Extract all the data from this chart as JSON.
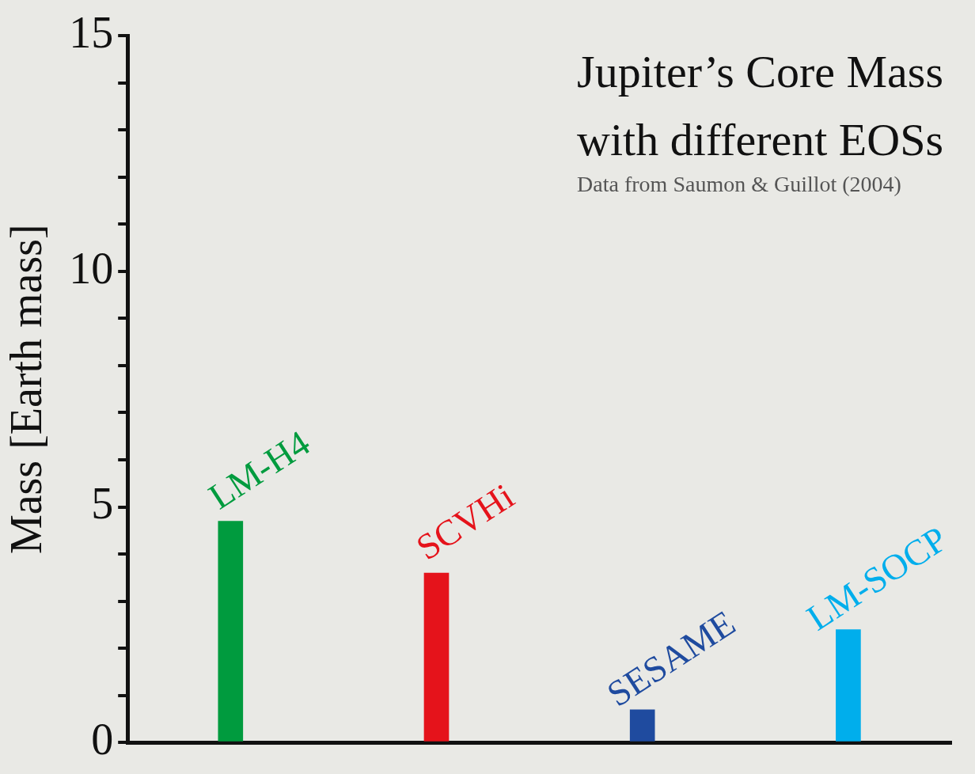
{
  "chart_data": {
    "type": "bar",
    "title": "Jupiter’s Core Mass with different EOSs",
    "subtitle": "Data from Saumon & Guillot (2004)",
    "ylabel": "Mass [Earth mass]",
    "categories": [
      "LM-H4",
      "SCVHi",
      "SESAME",
      "LM-SOCP"
    ],
    "values": [
      4.7,
      3.6,
      0.7,
      2.4
    ],
    "colors": [
      "#009b3e",
      "#e5131b",
      "#1f4b9f",
      "#00aeec"
    ],
    "ylim": [
      0,
      15
    ],
    "yticks": [
      0,
      {
        "value": 1,
        "label": null
      },
      {
        "value": 2,
        "label": null
      },
      {
        "value": 3,
        "label": null
      },
      {
        "value": 4,
        "label": null
      },
      5,
      {
        "value": 6,
        "label": null
      },
      {
        "value": 7,
        "label": null
      },
      {
        "value": 8,
        "label": null
      },
      {
        "value": 9,
        "label": null
      },
      10,
      {
        "value": 11,
        "label": null
      },
      {
        "value": 12,
        "label": null
      },
      {
        "value": 13,
        "label": null
      },
      {
        "value": 14,
        "label": null
      },
      15
    ],
    "grid": false,
    "legend": false
  }
}
